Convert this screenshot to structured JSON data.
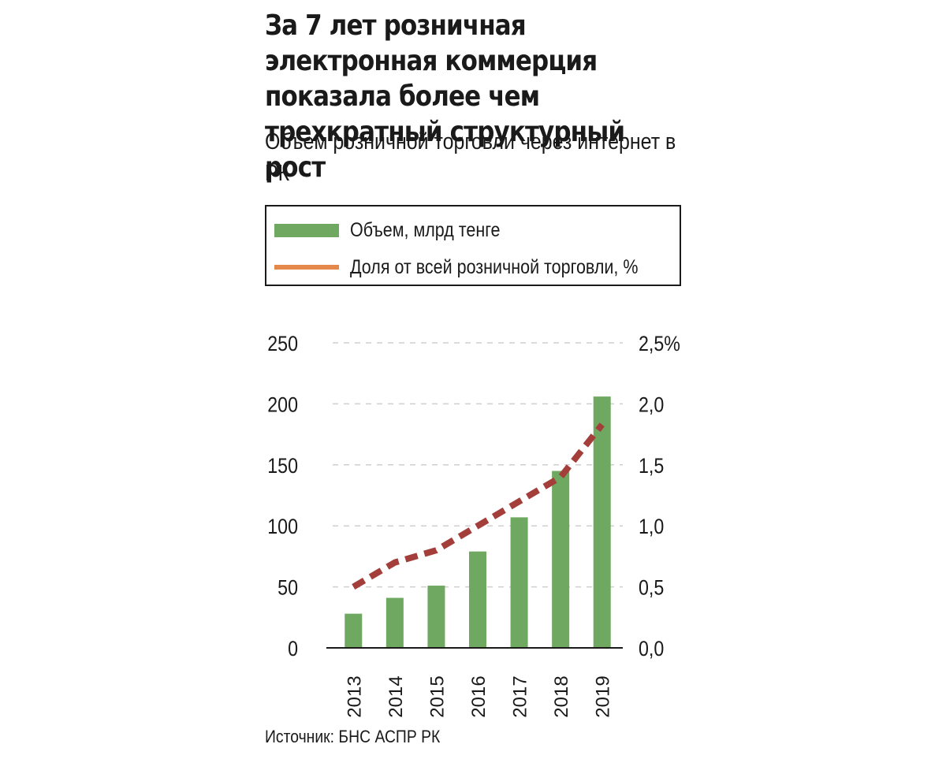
{
  "header": {
    "title": "За 7 лет розничная электронная коммерция показала более чем трехкратный структурный рост",
    "subtitle": "Объем розничной торговли через интернет в РК"
  },
  "legend": {
    "bar_label": "Объем, млрд тенге",
    "line_label": "Доля от всей розничной торговли, %"
  },
  "source": "Источник: БНС АСПР РК",
  "chart_data": {
    "type": "bar",
    "categories": [
      "2013",
      "2014",
      "2015",
      "2016",
      "2017",
      "2018",
      "2019"
    ],
    "series": [
      {
        "name": "Объем, млрд тенге",
        "type": "bar",
        "axis": "left",
        "values": [
          28,
          41,
          51,
          79,
          107,
          145,
          206
        ],
        "color": "#6fa860"
      },
      {
        "name": "Доля от всей розничной торговли, %",
        "type": "line",
        "axis": "right",
        "style": "dashed",
        "values": [
          0.5,
          0.7,
          0.8,
          1.0,
          1.2,
          1.4,
          1.83
        ],
        "color": "#a33e3a"
      }
    ],
    "y_left": {
      "ylim": [
        0,
        250
      ],
      "ticks": [
        "0",
        "50",
        "100",
        "150",
        "200",
        "250"
      ]
    },
    "y_right": {
      "ylim": [
        0,
        2.5
      ],
      "ticks": [
        "0,0",
        "0,5",
        "1,0",
        "1,5",
        "2,0",
        "2,5%"
      ]
    },
    "grid": true,
    "legend_placement": "top"
  }
}
